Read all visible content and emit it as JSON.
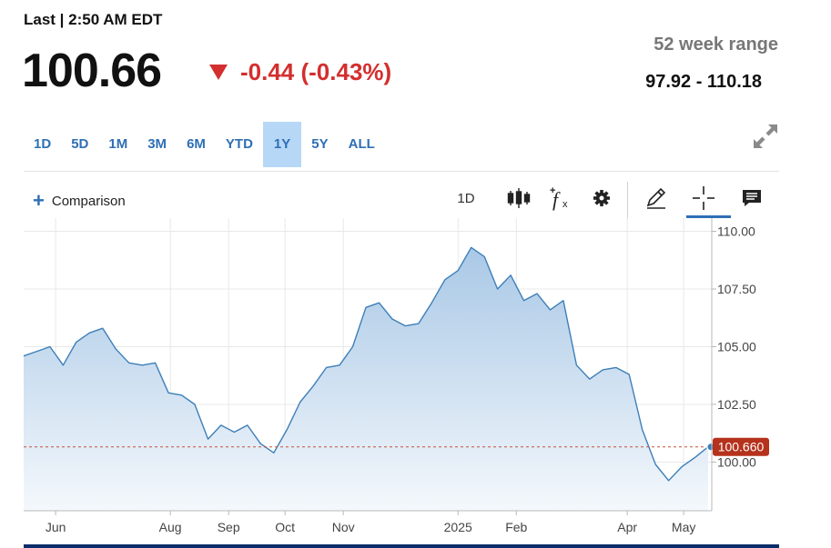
{
  "header": {
    "last_label": "Last | 2:50 AM EDT",
    "price": "100.66",
    "change": "-0.44 (-0.43%)",
    "range_label": "52 week range",
    "range_value": "97.92 - 110.18"
  },
  "tabs": [
    {
      "label": "1D"
    },
    {
      "label": "5D"
    },
    {
      "label": "1M"
    },
    {
      "label": "3M"
    },
    {
      "label": "6M"
    },
    {
      "label": "YTD"
    },
    {
      "label": "1Y",
      "active": true
    },
    {
      "label": "5Y"
    },
    {
      "label": "ALL"
    }
  ],
  "toolbar": {
    "comparison_label": "Comparison",
    "interval_label": "1D"
  },
  "colors": {
    "line": "#3d7fb8",
    "fill_top": "#a9c8e6",
    "fill_bottom": "#f4f8fc",
    "down": "#d32f2f",
    "last_badge": "#b5321c",
    "accent": "#2e6fb5"
  },
  "icons": [
    "plus-icon",
    "candlestick-icon",
    "fx-icon",
    "gear-icon",
    "pencil-icon",
    "crosshair-icon",
    "comment-icon",
    "expand-icon"
  ],
  "chart_data": {
    "type": "area",
    "x_tick_labels": [
      "Jun",
      "Aug",
      "Sep",
      "Oct",
      "Nov",
      "2025",
      "Feb",
      "Apr",
      "May"
    ],
    "y_tick_labels": [
      "110.00",
      "107.50",
      "105.00",
      "102.50",
      "100.00"
    ],
    "y_ticks": [
      110,
      107.5,
      105,
      102.5,
      100
    ],
    "ylim": [
      98,
      110.2
    ],
    "last_value_label": "100.660",
    "last_value": 100.66,
    "grid": true,
    "x": [
      "2024-05-15",
      "2024-05-22",
      "2024-05-29",
      "2024-06-05",
      "2024-06-12",
      "2024-06-19",
      "2024-06-26",
      "2024-07-03",
      "2024-07-10",
      "2024-07-17",
      "2024-07-24",
      "2024-07-31",
      "2024-08-07",
      "2024-08-14",
      "2024-08-21",
      "2024-08-28",
      "2024-09-04",
      "2024-09-11",
      "2024-09-18",
      "2024-09-25",
      "2024-10-02",
      "2024-10-09",
      "2024-10-16",
      "2024-10-23",
      "2024-10-30",
      "2024-11-06",
      "2024-11-13",
      "2024-11-20",
      "2024-11-27",
      "2024-12-04",
      "2024-12-11",
      "2024-12-18",
      "2024-12-25",
      "2025-01-01",
      "2025-01-08",
      "2025-01-15",
      "2025-01-22",
      "2025-01-29",
      "2025-02-05",
      "2025-02-12",
      "2025-02-19",
      "2025-02-26",
      "2025-03-05",
      "2025-03-12",
      "2025-03-19",
      "2025-03-26",
      "2025-04-02",
      "2025-04-09",
      "2025-04-16",
      "2025-04-23",
      "2025-04-30",
      "2025-05-07",
      "2025-05-14"
    ],
    "values": [
      104.6,
      104.8,
      105.0,
      104.2,
      105.2,
      105.6,
      105.8,
      104.9,
      104.3,
      104.2,
      104.3,
      103.0,
      102.9,
      102.5,
      101.0,
      101.6,
      101.3,
      101.6,
      100.8,
      100.4,
      101.4,
      102.6,
      103.3,
      104.1,
      104.2,
      105.0,
      106.7,
      106.9,
      106.2,
      105.9,
      106.0,
      106.9,
      107.9,
      108.3,
      109.3,
      108.9,
      107.5,
      108.1,
      107.0,
      107.3,
      106.6,
      107.0,
      104.2,
      103.6,
      104.0,
      104.1,
      103.8,
      101.4,
      99.9,
      99.2,
      99.8,
      100.2,
      100.66
    ]
  }
}
